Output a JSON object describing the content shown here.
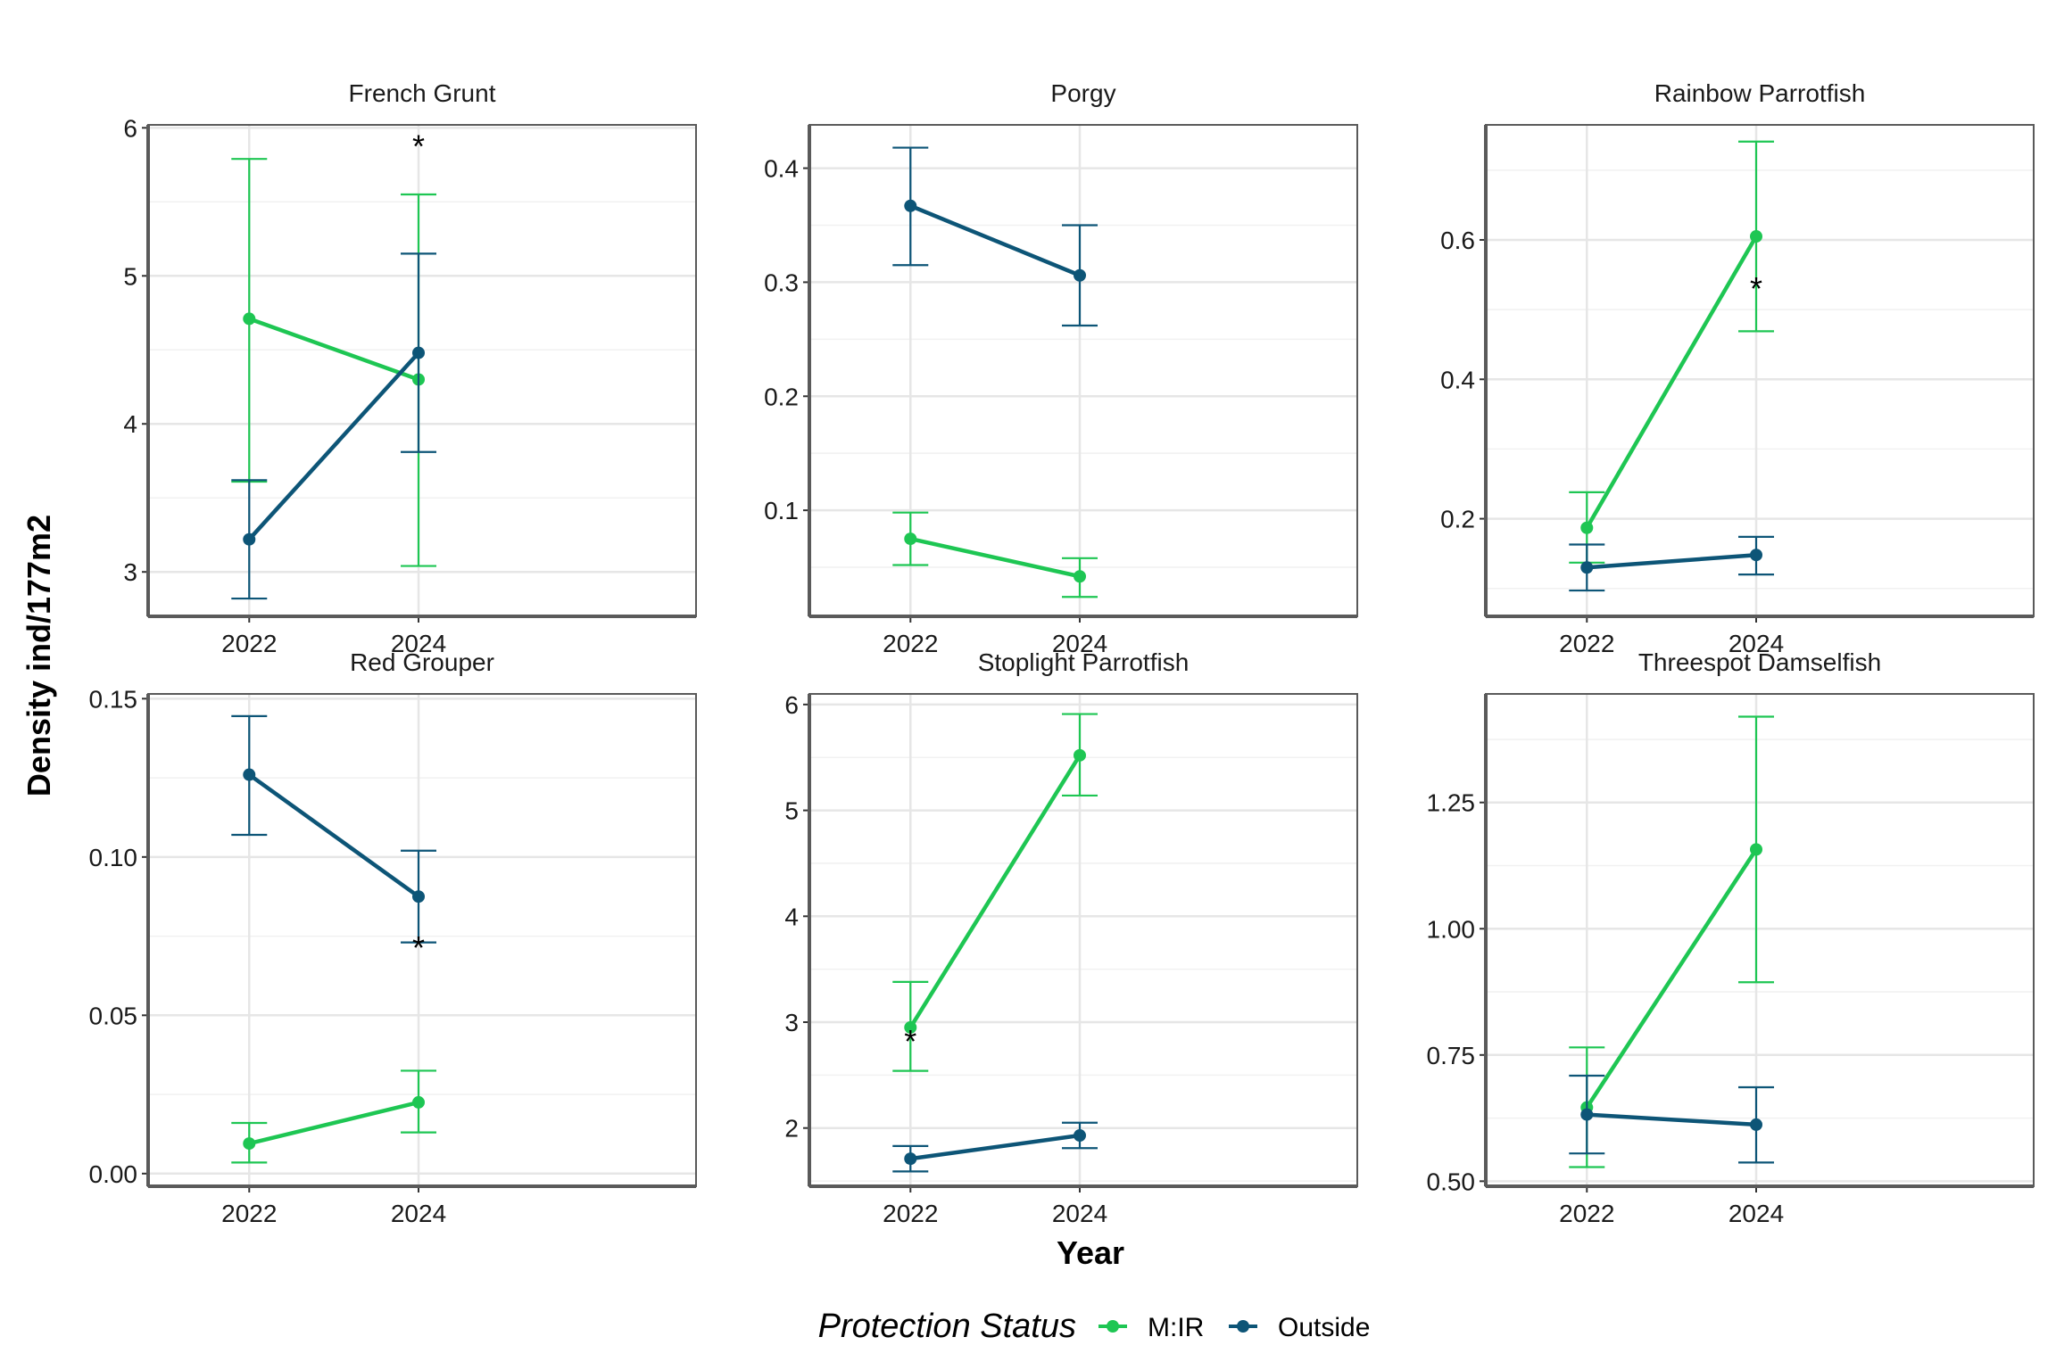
{
  "figure": {
    "xlabel": "Year",
    "ylabel": "Density ind/177m2",
    "legend": {
      "title": "Protection Status",
      "entries": [
        {
          "name": "M:IR",
          "color": "#1ec653"
        },
        {
          "name": "Outside",
          "color": "#0d5577"
        }
      ]
    },
    "colors": {
      "mir": "#1ec653",
      "outside": "#0d5577"
    }
  },
  "chart_data": [
    {
      "type": "line",
      "title": "French Grunt",
      "categories": [
        "2022",
        "2024"
      ],
      "ylim": [
        2.7,
        6.02
      ],
      "yticks": [
        "3",
        "4",
        "5",
        "6"
      ],
      "series": [
        {
          "name": "M:IR",
          "color": "#1ec653",
          "values": [
            4.71,
            4.3
          ],
          "lower": [
            3.61,
            3.04
          ],
          "upper": [
            5.79,
            5.55
          ]
        },
        {
          "name": "Outside",
          "color": "#0d5577",
          "values": [
            3.22,
            4.48
          ],
          "lower": [
            2.82,
            3.81
          ],
          "upper": [
            3.62,
            5.15
          ]
        }
      ],
      "annotations": [
        {
          "text": "*",
          "x": "2024",
          "y": 5.92
        }
      ]
    },
    {
      "type": "line",
      "title": "Porgy",
      "categories": [
        "2022",
        "2024"
      ],
      "ylim": [
        0.007,
        0.438
      ],
      "yticks": [
        "0.1",
        "0.2",
        "0.3",
        "0.4"
      ],
      "series": [
        {
          "name": "M:IR",
          "color": "#1ec653",
          "values": [
            0.075,
            0.042
          ],
          "lower": [
            0.052,
            0.024
          ],
          "upper": [
            0.098,
            0.058
          ]
        },
        {
          "name": "Outside",
          "color": "#0d5577",
          "values": [
            0.367,
            0.306
          ],
          "lower": [
            0.315,
            0.262
          ],
          "upper": [
            0.418,
            0.35
          ]
        }
      ],
      "annotations": []
    },
    {
      "type": "line",
      "title": "Rainbow Parrotfish",
      "categories": [
        "2022",
        "2024"
      ],
      "ylim": [
        0.06,
        0.765
      ],
      "yticks": [
        "0.2",
        "0.4",
        "0.6"
      ],
      "series": [
        {
          "name": "M:IR",
          "color": "#1ec653",
          "values": [
            0.187,
            0.605
          ],
          "lower": [
            0.137,
            0.469
          ],
          "upper": [
            0.238,
            0.741
          ]
        },
        {
          "name": "Outside",
          "color": "#0d5577",
          "values": [
            0.13,
            0.148
          ],
          "lower": [
            0.097,
            0.12
          ],
          "upper": [
            0.163,
            0.174
          ]
        }
      ],
      "annotations": [
        {
          "text": "*",
          "x": "2024",
          "y": 0.54
        }
      ]
    },
    {
      "type": "line",
      "title": "Red Grouper",
      "categories": [
        "2022",
        "2024"
      ],
      "ylim": [
        -0.004,
        0.1515
      ],
      "yticks": [
        "0.00",
        "0.05",
        "0.10",
        "0.15"
      ],
      "series": [
        {
          "name": "M:IR",
          "color": "#1ec653",
          "values": [
            0.0095,
            0.0225
          ],
          "lower": [
            0.0035,
            0.013
          ],
          "upper": [
            0.016,
            0.0325
          ]
        },
        {
          "name": "Outside",
          "color": "#0d5577",
          "values": [
            0.126,
            0.0875
          ],
          "lower": [
            0.107,
            0.073
          ],
          "upper": [
            0.1445,
            0.102
          ]
        }
      ],
      "annotations": [
        {
          "text": "*",
          "x": "2024",
          "y": 0.0735
        }
      ]
    },
    {
      "type": "line",
      "title": "Stoplight Parrotfish",
      "categories": [
        "2022",
        "2024"
      ],
      "ylim": [
        1.45,
        6.1
      ],
      "yticks": [
        "2",
        "3",
        "4",
        "5",
        "6"
      ],
      "series": [
        {
          "name": "M:IR",
          "color": "#1ec653",
          "values": [
            2.95,
            5.52
          ],
          "lower": [
            2.54,
            5.14
          ],
          "upper": [
            3.38,
            5.91
          ]
        },
        {
          "name": "Outside",
          "color": "#0d5577",
          "values": [
            1.71,
            1.93
          ],
          "lower": [
            1.59,
            1.81
          ],
          "upper": [
            1.83,
            2.05
          ]
        }
      ],
      "annotations": [
        {
          "text": "*",
          "x": "2022",
          "y": 2.88
        }
      ]
    },
    {
      "type": "line",
      "title": "Threespot Damselfish",
      "categories": [
        "2022",
        "2024"
      ],
      "ylim": [
        0.49,
        1.465
      ],
      "yticks": [
        "0.50",
        "0.75",
        "1.00",
        "1.25"
      ],
      "series": [
        {
          "name": "M:IR",
          "color": "#1ec653",
          "values": [
            0.646,
            1.157
          ],
          "lower": [
            0.528,
            0.894
          ],
          "upper": [
            0.765,
            1.42
          ]
        },
        {
          "name": "Outside",
          "color": "#0d5577",
          "values": [
            0.632,
            0.612
          ],
          "lower": [
            0.555,
            0.537
          ],
          "upper": [
            0.709,
            0.686
          ]
        }
      ],
      "annotations": []
    }
  ]
}
